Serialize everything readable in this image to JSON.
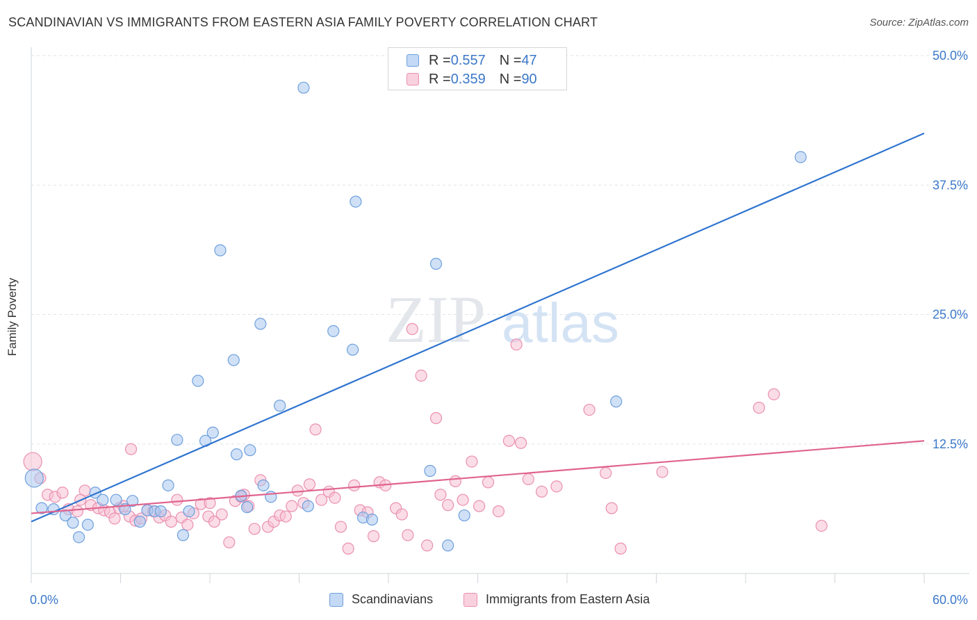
{
  "header": {
    "title": "SCANDINAVIAN VS IMMIGRANTS FROM EASTERN ASIA FAMILY POVERTY CORRELATION CHART",
    "source": "Source: ZipAtlas.com"
  },
  "watermark": {
    "zip": "ZIP",
    "atlas": "atlas"
  },
  "legend": {
    "rows": [
      {
        "r_label": "R = ",
        "r_value": "0.557",
        "n_label": "N = ",
        "n_value": "47"
      },
      {
        "r_label": "R = ",
        "r_value": "0.359",
        "n_label": "N = ",
        "n_value": "90"
      }
    ]
  },
  "colors": {
    "blue_fill": "#aac9f0",
    "blue_stroke": "#6e9fdc",
    "blue_line": "#2f74d0",
    "pink_fill": "#f7c1d4",
    "pink_stroke": "#ea8fb0",
    "pink_line": "#e0638f",
    "tick_label": "#3b78c9",
    "grid": "#dde3ea"
  },
  "chart_data": {
    "type": "scatter",
    "title": "SCANDINAVIAN VS IMMIGRANTS FROM EASTERN ASIA FAMILY POVERTY CORRELATION CHART",
    "xlabel": "",
    "ylabel": "Family Poverty",
    "xlim": [
      0,
      60
    ],
    "ylim": [
      0,
      50
    ],
    "x_tick_labels": [
      "0.0%",
      "60.0%"
    ],
    "y_ticks": [
      12.5,
      25.0,
      37.5,
      50.0
    ],
    "y_tick_labels": [
      "12.5%",
      "25.0%",
      "37.5%",
      "50.0%"
    ],
    "grid": true,
    "legend_position": "top-center",
    "series": [
      {
        "name": "Scandinavians",
        "color": "#6e9fdc",
        "trendline": {
          "x": [
            0,
            60
          ],
          "y": [
            5.0,
            42.5
          ]
        },
        "points": [
          [
            0.2,
            9.2
          ],
          [
            0.7,
            6.3
          ],
          [
            1.5,
            6.2
          ],
          [
            2.3,
            5.6
          ],
          [
            2.8,
            4.9
          ],
          [
            3.8,
            4.7
          ],
          [
            4.3,
            7.8
          ],
          [
            4.8,
            7.1
          ],
          [
            5.7,
            7.1
          ],
          [
            6.3,
            6.2
          ],
          [
            6.8,
            7.0
          ],
          [
            7.3,
            5.0
          ],
          [
            7.8,
            6.1
          ],
          [
            8.3,
            6.0
          ],
          [
            8.7,
            6.0
          ],
          [
            9.2,
            8.5
          ],
          [
            9.8,
            12.9
          ],
          [
            10.2,
            3.7
          ],
          [
            10.6,
            6.0
          ],
          [
            11.2,
            18.6
          ],
          [
            11.7,
            12.8
          ],
          [
            12.2,
            13.6
          ],
          [
            12.7,
            31.2
          ],
          [
            13.6,
            20.6
          ],
          [
            13.8,
            11.5
          ],
          [
            14.1,
            7.5
          ],
          [
            14.7,
            11.9
          ],
          [
            15.4,
            24.1
          ],
          [
            15.6,
            8.5
          ],
          [
            16.1,
            7.4
          ],
          [
            16.7,
            16.2
          ],
          [
            18.6,
            6.5
          ],
          [
            18.3,
            46.9
          ],
          [
            20.3,
            23.4
          ],
          [
            21.6,
            21.6
          ],
          [
            21.8,
            35.9
          ],
          [
            22.3,
            5.4
          ],
          [
            22.9,
            5.2
          ],
          [
            26.8,
            9.9
          ],
          [
            27.2,
            29.9
          ],
          [
            28.0,
            2.7
          ],
          [
            29.1,
            5.6
          ],
          [
            39.3,
            16.6
          ],
          [
            51.7,
            40.2
          ],
          [
            26.3,
            50.0
          ],
          [
            3.2,
            3.5
          ],
          [
            14.5,
            6.4
          ]
        ]
      },
      {
        "name": "Immigrants from Eastern Asia",
        "color": "#ea8fb0",
        "trendline": {
          "x": [
            0,
            60
          ],
          "y": [
            5.8,
            12.8
          ]
        },
        "points": [
          [
            0.1,
            10.8
          ],
          [
            0.6,
            9.2
          ],
          [
            1.1,
            7.6
          ],
          [
            1.6,
            7.4
          ],
          [
            2.1,
            7.8
          ],
          [
            2.5,
            6.2
          ],
          [
            3.1,
            6.0
          ],
          [
            3.6,
            8.0
          ],
          [
            4.0,
            6.6
          ],
          [
            4.5,
            6.3
          ],
          [
            4.9,
            6.1
          ],
          [
            5.3,
            5.9
          ],
          [
            5.6,
            5.3
          ],
          [
            5.9,
            6.3
          ],
          [
            6.2,
            6.5
          ],
          [
            6.6,
            5.5
          ],
          [
            7.0,
            5.1
          ],
          [
            7.4,
            5.3
          ],
          [
            7.8,
            6.1
          ],
          [
            8.2,
            6.0
          ],
          [
            8.6,
            5.4
          ],
          [
            9.0,
            5.6
          ],
          [
            9.4,
            5.0
          ],
          [
            9.8,
            7.1
          ],
          [
            10.1,
            5.4
          ],
          [
            10.5,
            4.7
          ],
          [
            10.9,
            5.8
          ],
          [
            11.4,
            6.7
          ],
          [
            11.9,
            5.5
          ],
          [
            12.3,
            5.0
          ],
          [
            12.8,
            5.7
          ],
          [
            13.3,
            3.0
          ],
          [
            13.7,
            7.0
          ],
          [
            14.1,
            7.4
          ],
          [
            14.6,
            6.5
          ],
          [
            15.0,
            4.3
          ],
          [
            15.4,
            9.0
          ],
          [
            15.9,
            4.5
          ],
          [
            16.3,
            5.0
          ],
          [
            16.7,
            5.6
          ],
          [
            17.1,
            5.5
          ],
          [
            17.5,
            6.5
          ],
          [
            17.9,
            8.0
          ],
          [
            18.3,
            6.8
          ],
          [
            18.7,
            8.6
          ],
          [
            19.1,
            13.9
          ],
          [
            19.5,
            7.1
          ],
          [
            20.0,
            7.9
          ],
          [
            20.4,
            7.3
          ],
          [
            20.8,
            4.5
          ],
          [
            21.3,
            2.4
          ],
          [
            21.7,
            8.5
          ],
          [
            22.1,
            6.1
          ],
          [
            22.6,
            5.9
          ],
          [
            23.0,
            3.6
          ],
          [
            23.4,
            8.8
          ],
          [
            23.8,
            8.5
          ],
          [
            24.5,
            6.3
          ],
          [
            24.9,
            5.7
          ],
          [
            25.3,
            3.7
          ],
          [
            25.6,
            23.6
          ],
          [
            26.2,
            19.1
          ],
          [
            26.6,
            2.7
          ],
          [
            27.2,
            15.0
          ],
          [
            27.5,
            7.6
          ],
          [
            28.0,
            6.6
          ],
          [
            28.5,
            8.9
          ],
          [
            29.0,
            7.1
          ],
          [
            29.6,
            10.8
          ],
          [
            30.1,
            6.5
          ],
          [
            30.7,
            8.8
          ],
          [
            31.4,
            6.0
          ],
          [
            32.1,
            12.8
          ],
          [
            32.6,
            22.1
          ],
          [
            32.9,
            12.6
          ],
          [
            33.4,
            9.1
          ],
          [
            34.3,
            7.9
          ],
          [
            35.3,
            8.4
          ],
          [
            37.5,
            15.8
          ],
          [
            38.6,
            9.7
          ],
          [
            39.0,
            6.3
          ],
          [
            39.6,
            2.4
          ],
          [
            42.4,
            9.8
          ],
          [
            53.1,
            4.6
          ],
          [
            48.9,
            16.0
          ],
          [
            49.9,
            17.3
          ],
          [
            12.0,
            6.8
          ],
          [
            6.7,
            12.0
          ],
          [
            3.3,
            7.1
          ],
          [
            14.3,
            7.6
          ]
        ]
      }
    ]
  },
  "bottom_legend": {
    "items": [
      {
        "label": "Scandinavians"
      },
      {
        "label": "Immigrants from Eastern Asia"
      }
    ]
  }
}
